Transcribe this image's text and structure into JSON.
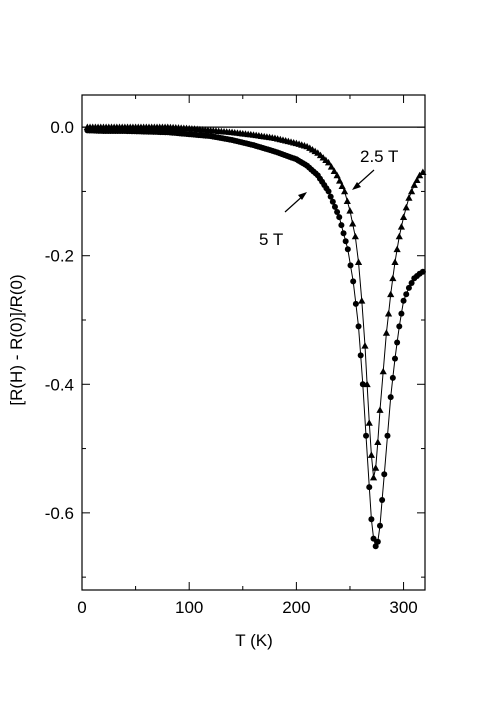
{
  "chart_data": {
    "type": "scatter",
    "title": "",
    "xlabel": "T (K)",
    "ylabel": "[R(H) - R(0)]/R(0)",
    "xlim": [
      0,
      320
    ],
    "ylim": [
      -0.72,
      0.05
    ],
    "x_ticks": [
      0,
      100,
      200,
      300
    ],
    "x_tick_labels": [
      "0",
      "100",
      "200",
      "300"
    ],
    "y_ticks": [
      0.0,
      -0.2,
      -0.4,
      -0.6
    ],
    "y_tick_labels": [
      "0.0",
      "-0.2",
      "-0.4",
      "-0.6"
    ],
    "reference_line_y": 0.0,
    "grid": false,
    "legend": "none",
    "series": [
      {
        "marker": "triangle",
        "color": "#000000",
        "annotation": "2.5 T",
        "x": [
          5,
          20,
          40,
          60,
          80,
          100,
          120,
          140,
          160,
          180,
          200,
          210,
          220,
          230,
          238,
          245,
          250,
          255,
          258,
          261,
          264,
          266,
          268,
          270,
          272,
          274,
          276,
          278,
          281,
          284,
          288,
          292,
          296,
          300,
          305,
          310,
          315,
          318
        ],
        "y": [
          0.0,
          0.0,
          0.0,
          0.0,
          0.0,
          -0.002,
          -0.005,
          -0.008,
          -0.012,
          -0.017,
          -0.025,
          -0.03,
          -0.04,
          -0.055,
          -0.075,
          -0.1,
          -0.13,
          -0.17,
          -0.21,
          -0.27,
          -0.34,
          -0.4,
          -0.46,
          -0.51,
          -0.545,
          -0.53,
          -0.49,
          -0.44,
          -0.38,
          -0.32,
          -0.26,
          -0.21,
          -0.17,
          -0.14,
          -0.11,
          -0.09,
          -0.075,
          -0.07
        ]
      },
      {
        "marker": "circle",
        "color": "#000000",
        "annotation": "5 T",
        "x": [
          5,
          20,
          40,
          60,
          80,
          100,
          120,
          140,
          160,
          180,
          200,
          210,
          220,
          230,
          240,
          248,
          253,
          258,
          262,
          265,
          268,
          270,
          272,
          274,
          276,
          278,
          280,
          282,
          285,
          288,
          292,
          296,
          300,
          305,
          310,
          315,
          318
        ],
        "y": [
          -0.005,
          -0.006,
          -0.006,
          -0.007,
          -0.008,
          -0.011,
          -0.014,
          -0.02,
          -0.028,
          -0.038,
          -0.05,
          -0.06,
          -0.075,
          -0.1,
          -0.14,
          -0.19,
          -0.24,
          -0.31,
          -0.4,
          -0.48,
          -0.56,
          -0.61,
          -0.64,
          -0.652,
          -0.645,
          -0.62,
          -0.58,
          -0.54,
          -0.48,
          -0.42,
          -0.36,
          -0.31,
          -0.27,
          -0.25,
          -0.235,
          -0.228,
          -0.225
        ]
      }
    ]
  }
}
